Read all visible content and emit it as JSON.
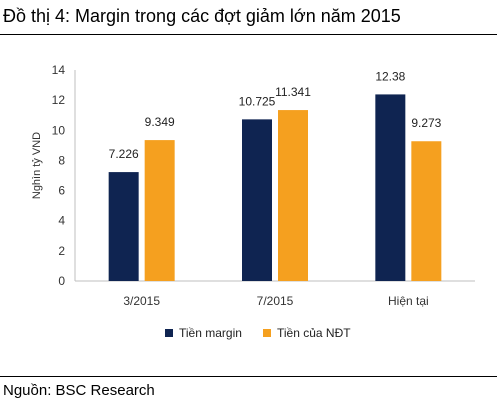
{
  "header": {
    "title": "Đồ thị 4: Margin trong các đợt giảm lớn năm 2015"
  },
  "footer": {
    "source": "Nguồn: BSC Research"
  },
  "chart_data": {
    "type": "bar",
    "title": "",
    "xlabel": "",
    "ylabel": "Nghìn tỷ VND",
    "ylim": [
      0,
      14
    ],
    "yticks": [
      "0",
      "2",
      "4",
      "6",
      "8",
      "10",
      "12",
      "14"
    ],
    "categories": [
      "3/2015",
      "7/2015",
      "Hiện tại"
    ],
    "series": [
      {
        "name": "Tiền margin",
        "color": "#0f2451",
        "values": [
          7.226,
          10.725,
          12.38
        ],
        "labels": [
          "7.226",
          "10.725",
          "12.38"
        ]
      },
      {
        "name": "Tiền của NĐT",
        "color": "#f5a01f",
        "values": [
          9.349,
          11.341,
          9.273
        ],
        "labels": [
          "9.349",
          "11.341",
          "9.273"
        ]
      }
    ],
    "grid": false,
    "legend": "bottom-center"
  }
}
